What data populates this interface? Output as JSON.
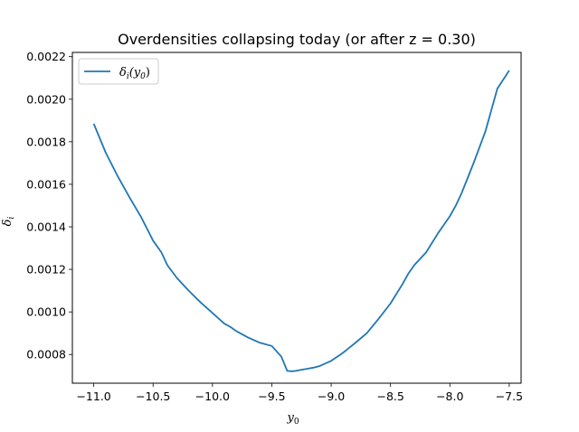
{
  "chart_data": {
    "type": "line",
    "title": "Overdensities collapsing today (or after z = 0.30)",
    "xlabel": "y",
    "xlabel_sub": "0",
    "ylabel": "δ",
    "ylabel_sub": "i",
    "xlim": [
      -11.18,
      -7.4
    ],
    "ylim": [
      0.000665,
      0.00222
    ],
    "x_ticks": [
      -11.0,
      -10.5,
      -10.0,
      -9.5,
      -9.0,
      -8.5,
      -8.0,
      -7.5
    ],
    "x_tick_labels": [
      "−11.0",
      "−10.5",
      "−10.0",
      "−9.5",
      "−9.0",
      "−8.5",
      "−8.0",
      "−7.5"
    ],
    "y_ticks": [
      0.0008,
      0.001,
      0.0012,
      0.0014,
      0.0016,
      0.0018,
      0.002,
      0.0022
    ],
    "y_tick_labels": [
      "0.0008",
      "0.0010",
      "0.0012",
      "0.0014",
      "0.0016",
      "0.0018",
      "0.0020",
      "0.0022"
    ],
    "grid": false,
    "legend": {
      "position": "top-left",
      "entries": [
        {
          "label": "δ",
          "label_sub": "i",
          "label_suffix": "(y",
          "label_suffix_sub": "0",
          "label_close": ")"
        }
      ]
    },
    "series": [
      {
        "name": "δi(y0)",
        "color": "#1f77b4",
        "x": [
          -11.0,
          -10.9,
          -10.8,
          -10.7,
          -10.6,
          -10.5,
          -10.43,
          -10.38,
          -10.3,
          -10.2,
          -10.1,
          -10.0,
          -9.9,
          -9.85,
          -9.8,
          -9.7,
          -9.6,
          -9.5,
          -9.42,
          -9.37,
          -9.33,
          -9.3,
          -9.25,
          -9.2,
          -9.15,
          -9.1,
          -9.0,
          -8.9,
          -8.8,
          -8.7,
          -8.6,
          -8.5,
          -8.4,
          -8.35,
          -8.3,
          -8.2,
          -8.1,
          -8.0,
          -7.95,
          -7.9,
          -7.85,
          -7.8,
          -7.7,
          -7.6,
          -7.5
        ],
        "y": [
          0.001885,
          0.00175,
          0.00164,
          0.00154,
          0.001445,
          0.001335,
          0.00128,
          0.00122,
          0.00116,
          0.0011,
          0.001045,
          0.000995,
          0.000945,
          0.00093,
          0.00091,
          0.00088,
          0.000855,
          0.00084,
          0.00079,
          0.000723,
          0.000721,
          0.000723,
          0.000728,
          0.000733,
          0.000738,
          0.000745,
          0.00077,
          0.000808,
          0.000853,
          0.0009,
          0.000968,
          0.00104,
          0.00113,
          0.00118,
          0.00122,
          0.00128,
          0.00137,
          0.00145,
          0.0015,
          0.00156,
          0.00163,
          0.0017,
          0.00185,
          0.00205,
          0.002135
        ]
      }
    ]
  }
}
